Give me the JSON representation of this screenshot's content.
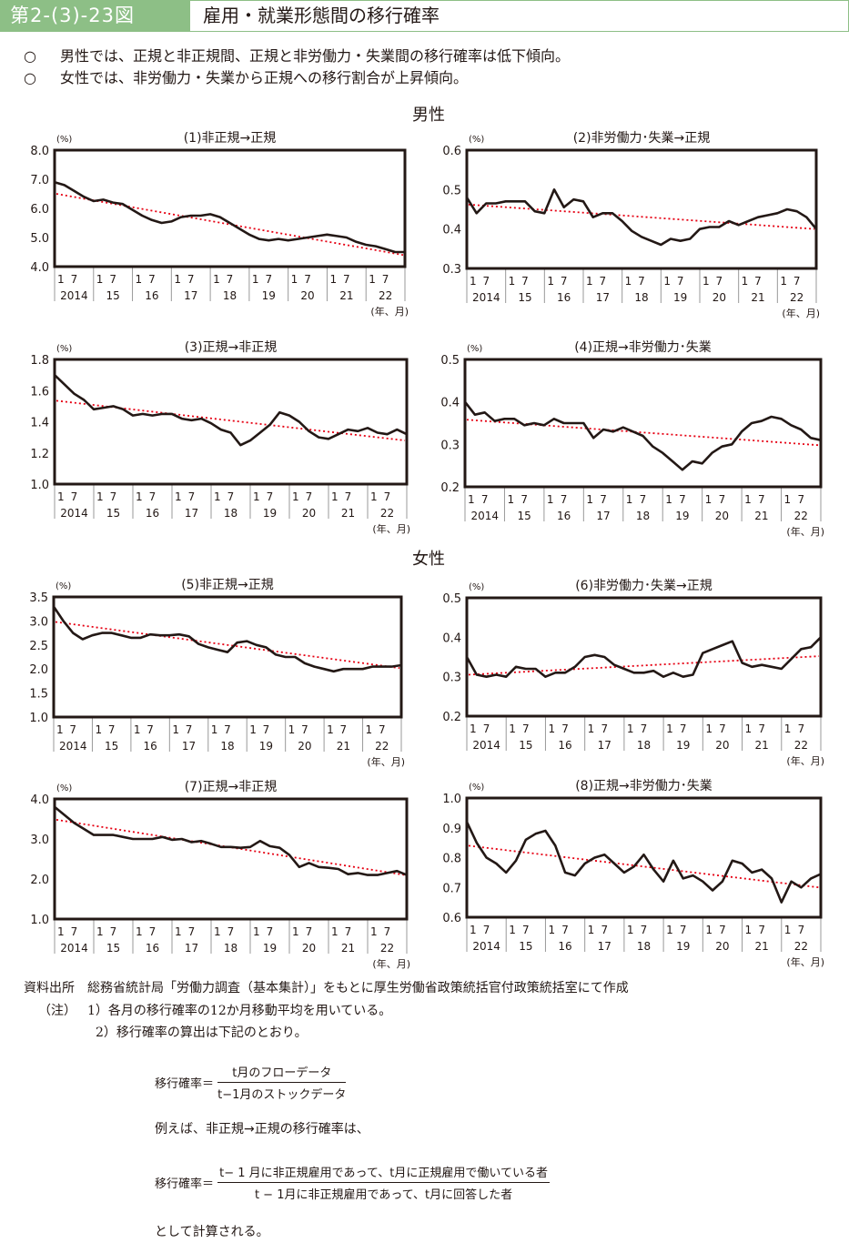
{
  "header": {
    "figure_number": "第2-(3)-23図",
    "title": "雇用・就業形態間の移行確率"
  },
  "bullets": [
    {
      "marker": "○",
      "text": "男性では、正規と非正規間、正規と非労働力・失業間の移行確率は低下傾向。"
    },
    {
      "marker": "○",
      "text": "女性では、非労働力・失業から正規への移行割合が上昇傾向。"
    }
  ],
  "sections": {
    "male": "男性",
    "female": "女性"
  },
  "axis_common": {
    "unit_label": "(%)",
    "x_unit_label": "(年、月)",
    "month_ticks": [
      "1",
      "7"
    ],
    "year_labels": [
      "2014",
      "15",
      "16",
      "17",
      "18",
      "19",
      "20",
      "21",
      "22"
    ]
  },
  "colors": {
    "header_green": "#8dbf86",
    "series_line": "#231815",
    "trend_line": "#e60012"
  },
  "chart_data": [
    {
      "id": "c1",
      "type": "line",
      "title": "(1)非正規→正規",
      "group": "男性",
      "ylabel": "(%)",
      "xlabel": "(年、月)",
      "ylim": [
        4.0,
        8.0
      ],
      "yticks": [
        "4.0",
        "5.0",
        "6.0",
        "7.0",
        "8.0"
      ],
      "x_start": "2014-01",
      "x_end": "2022-12",
      "x_step_months": 3,
      "series": [
        {
          "name": "移行確率(12か月移動平均)",
          "values": [
            6.9,
            6.8,
            6.6,
            6.4,
            6.25,
            6.3,
            6.2,
            6.15,
            5.95,
            5.75,
            5.6,
            5.5,
            5.55,
            5.7,
            5.75,
            5.75,
            5.8,
            5.7,
            5.5,
            5.3,
            5.1,
            4.95,
            4.9,
            4.95,
            4.9,
            4.95,
            5.0,
            5.05,
            5.1,
            5.05,
            5.0,
            4.85,
            4.75,
            4.7,
            4.6,
            4.5,
            4.5
          ]
        }
      ],
      "trend": {
        "name": "趨勢線",
        "start": 6.5,
        "end": 4.4
      }
    },
    {
      "id": "c2",
      "type": "line",
      "title": "(2)非労働力･失業→正規",
      "group": "男性",
      "ylabel": "(%)",
      "xlabel": "(年、月)",
      "ylim": [
        0.3,
        0.6
      ],
      "yticks": [
        "0.3",
        "0.4",
        "0.5",
        "0.6"
      ],
      "x_start": "2014-01",
      "x_end": "2022-12",
      "x_step_months": 3,
      "series": [
        {
          "name": "移行確率(12か月移動平均)",
          "values": [
            0.48,
            0.44,
            0.465,
            0.465,
            0.47,
            0.47,
            0.47,
            0.445,
            0.44,
            0.5,
            0.455,
            0.475,
            0.47,
            0.43,
            0.44,
            0.44,
            0.42,
            0.395,
            0.38,
            0.37,
            0.36,
            0.375,
            0.37,
            0.375,
            0.4,
            0.405,
            0.405,
            0.42,
            0.41,
            0.42,
            0.43,
            0.435,
            0.44,
            0.45,
            0.445,
            0.43,
            0.4
          ]
        }
      ],
      "trend": {
        "name": "趨勢線",
        "start": 0.462,
        "end": 0.4
      }
    },
    {
      "id": "c3",
      "type": "line",
      "title": "(3)正規→非正規",
      "group": "男性",
      "ylabel": "(%)",
      "xlabel": "(年、月)",
      "ylim": [
        1.0,
        1.8
      ],
      "yticks": [
        "1.0",
        "1.2",
        "1.4",
        "1.6",
        "1.8"
      ],
      "x_start": "2014-01",
      "x_end": "2022-12",
      "x_step_months": 3,
      "series": [
        {
          "name": "移行確率(12か月移動平均)",
          "values": [
            1.7,
            1.64,
            1.58,
            1.54,
            1.48,
            1.49,
            1.5,
            1.48,
            1.44,
            1.45,
            1.44,
            1.45,
            1.45,
            1.42,
            1.41,
            1.42,
            1.39,
            1.35,
            1.33,
            1.25,
            1.28,
            1.33,
            1.38,
            1.46,
            1.44,
            1.4,
            1.34,
            1.3,
            1.29,
            1.32,
            1.35,
            1.34,
            1.36,
            1.33,
            1.32,
            1.35,
            1.32
          ]
        }
      ],
      "trend": {
        "name": "趨勢線",
        "start": 1.535,
        "end": 1.28
      }
    },
    {
      "id": "c4",
      "type": "line",
      "title": "(4)正規→非労働力･失業",
      "group": "男性",
      "ylabel": "(%)",
      "xlabel": "(年、月)",
      "ylim": [
        0.2,
        0.5
      ],
      "yticks": [
        "0.2",
        "0.3",
        "0.4",
        "0.5"
      ],
      "x_start": "2014-01",
      "x_end": "2022-12",
      "x_step_months": 3,
      "series": [
        {
          "name": "移行確率(12か月移動平均)",
          "values": [
            0.4,
            0.37,
            0.375,
            0.355,
            0.36,
            0.36,
            0.345,
            0.35,
            0.345,
            0.36,
            0.35,
            0.35,
            0.35,
            0.315,
            0.335,
            0.33,
            0.34,
            0.33,
            0.32,
            0.295,
            0.28,
            0.26,
            0.24,
            0.26,
            0.255,
            0.28,
            0.295,
            0.3,
            0.33,
            0.35,
            0.355,
            0.365,
            0.36,
            0.345,
            0.335,
            0.315,
            0.31
          ]
        }
      ],
      "trend": {
        "name": "趨勢線",
        "start": 0.358,
        "end": 0.298
      }
    },
    {
      "id": "c5",
      "type": "line",
      "title": "(5)非正規→正規",
      "group": "女性",
      "ylabel": "(%)",
      "xlabel": "(年、月)",
      "ylim": [
        1.0,
        3.5
      ],
      "yticks": [
        "1.0",
        "1.5",
        "2.0",
        "2.5",
        "3.0",
        "3.5"
      ],
      "x_start": "2014-01",
      "x_end": "2022-12",
      "x_step_months": 3,
      "series": [
        {
          "name": "移行確率(12か月移動平均)",
          "values": [
            3.3,
            3.0,
            2.75,
            2.62,
            2.7,
            2.75,
            2.75,
            2.7,
            2.65,
            2.65,
            2.72,
            2.7,
            2.7,
            2.72,
            2.68,
            2.52,
            2.45,
            2.4,
            2.35,
            2.55,
            2.58,
            2.5,
            2.45,
            2.3,
            2.25,
            2.25,
            2.12,
            2.05,
            2.0,
            1.95,
            2.0,
            2.0,
            2.0,
            2.05,
            2.05,
            2.05,
            2.08
          ]
        }
      ],
      "trend": {
        "name": "趨勢線",
        "start": 2.98,
        "end": 2.02
      }
    },
    {
      "id": "c6",
      "type": "line",
      "title": "(6)非労働力･失業→正規",
      "group": "女性",
      "ylabel": "(%)",
      "xlabel": "(年、月)",
      "ylim": [
        0.2,
        0.5
      ],
      "yticks": [
        "0.2",
        "0.3",
        "0.4",
        "0.5"
      ],
      "x_start": "2014-01",
      "x_end": "2022-12",
      "x_step_months": 3,
      "series": [
        {
          "name": "移行確率(12か月移動平均)",
          "values": [
            0.35,
            0.305,
            0.3,
            0.305,
            0.3,
            0.325,
            0.32,
            0.32,
            0.3,
            0.31,
            0.31,
            0.325,
            0.35,
            0.355,
            0.35,
            0.33,
            0.32,
            0.31,
            0.31,
            0.315,
            0.3,
            0.31,
            0.3,
            0.305,
            0.36,
            0.37,
            0.38,
            0.39,
            0.335,
            0.325,
            0.33,
            0.325,
            0.32,
            0.345,
            0.37,
            0.375,
            0.4
          ]
        }
      ],
      "trend": {
        "name": "趨勢線",
        "start": 0.305,
        "end": 0.352
      }
    },
    {
      "id": "c7",
      "type": "line",
      "title": "(7)正規→非正規",
      "group": "女性",
      "ylabel": "(%)",
      "xlabel": "(年、月)",
      "ylim": [
        1.0,
        4.0
      ],
      "yticks": [
        "1.0",
        "2.0",
        "3.0",
        "4.0"
      ],
      "x_start": "2014-01",
      "x_end": "2022-12",
      "x_step_months": 3,
      "series": [
        {
          "name": "移行確率(12か月移動平均)",
          "values": [
            3.8,
            3.6,
            3.4,
            3.25,
            3.1,
            3.1,
            3.1,
            3.05,
            3.0,
            3.0,
            3.0,
            3.05,
            2.98,
            3.0,
            2.92,
            2.95,
            2.88,
            2.8,
            2.8,
            2.78,
            2.8,
            2.95,
            2.82,
            2.78,
            2.6,
            2.3,
            2.4,
            2.3,
            2.28,
            2.25,
            2.12,
            2.15,
            2.1,
            2.1,
            2.15,
            2.2,
            2.1
          ]
        }
      ],
      "trend": {
        "name": "趨勢線",
        "start": 3.48,
        "end": 2.1
      }
    },
    {
      "id": "c8",
      "type": "line",
      "title": "(8)正規→非労働力･失業",
      "group": "女性",
      "ylabel": "(%)",
      "xlabel": "(年、月)",
      "ylim": [
        0.6,
        1.0
      ],
      "yticks": [
        "0.6",
        "0.7",
        "0.8",
        "0.9",
        "1.0"
      ],
      "x_start": "2014-01",
      "x_end": "2022-12",
      "x_step_months": 3,
      "series": [
        {
          "name": "移行確率(12か月移動平均)",
          "values": [
            0.92,
            0.85,
            0.8,
            0.78,
            0.75,
            0.79,
            0.86,
            0.88,
            0.89,
            0.84,
            0.75,
            0.74,
            0.78,
            0.8,
            0.81,
            0.78,
            0.75,
            0.77,
            0.81,
            0.76,
            0.72,
            0.79,
            0.73,
            0.74,
            0.72,
            0.69,
            0.72,
            0.79,
            0.78,
            0.75,
            0.76,
            0.73,
            0.65,
            0.72,
            0.7,
            0.73,
            0.745
          ]
        }
      ],
      "trend": {
        "name": "趨勢線",
        "start": 0.84,
        "end": 0.7
      }
    }
  ],
  "notes": {
    "source_label": "資料出所",
    "source_text": "総務省統計局「労働力調査（基本集計）」をもとに厚生労働省政策統括官付政策統括室にて作成",
    "note_label": "（注）",
    "note1": "1）各月の移行確率の12か月移動平均を用いている。",
    "note2": "2）移行確率の算出は下記のとおり。"
  },
  "formula1": {
    "lhs": "移行確率＝",
    "numerator": "t月のフローデータ",
    "denominator": "t−1月のストックデータ"
  },
  "example_text": "例えば、非正規→正規の移行確率は、",
  "formula2": {
    "lhs": "移行確率＝",
    "numerator": "t− 1 月に非正規雇用であって、t月に正規雇用で働いている者",
    "denominator": "t − 1月に非正規雇用であって、t月に回答した者"
  },
  "closing_text": "として計算される。"
}
